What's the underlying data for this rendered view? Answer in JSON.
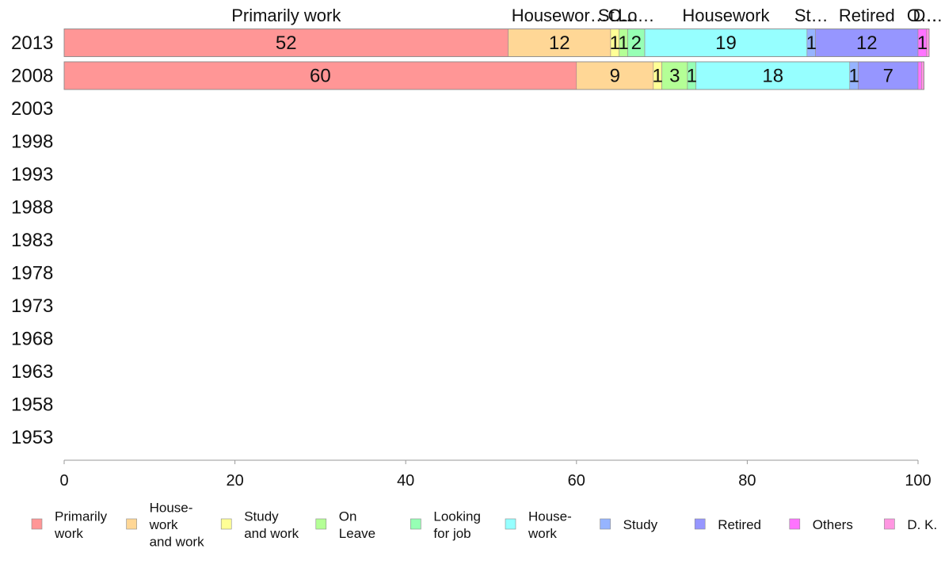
{
  "chart_data": {
    "type": "bar",
    "orientation": "horizontal-stacked",
    "categories": [
      "2013",
      "2008",
      "2003",
      "1998",
      "1993",
      "1988",
      "1983",
      "1978",
      "1973",
      "1968",
      "1963",
      "1958",
      "1953"
    ],
    "series": [
      {
        "name": "Primarily work",
        "legend": [
          "Primarily",
          "work"
        ],
        "top": "Primarily work",
        "color": "#ff9696",
        "values": [
          52,
          60,
          null,
          null,
          null,
          null,
          null,
          null,
          null,
          null,
          null,
          null,
          null
        ]
      },
      {
        "name": "House-work and work",
        "legend": [
          "House-",
          "work",
          "and work"
        ],
        "top": "Housewor…",
        "color": "#ffd796",
        "values": [
          12,
          9,
          null,
          null,
          null,
          null,
          null,
          null,
          null,
          null,
          null,
          null,
          null
        ]
      },
      {
        "name": "Study and work",
        "legend": [
          "Study",
          "and work"
        ],
        "top": "St…",
        "color": "#ffff96",
        "values": [
          1,
          1,
          null,
          null,
          null,
          null,
          null,
          null,
          null,
          null,
          null,
          null,
          null
        ]
      },
      {
        "name": "On Leave",
        "legend": [
          "On",
          "Leave"
        ],
        "top": "O…",
        "color": "#b4ff96",
        "values": [
          1,
          3,
          null,
          null,
          null,
          null,
          null,
          null,
          null,
          null,
          null,
          null,
          null
        ]
      },
      {
        "name": "Looking for job",
        "legend": [
          "Looking",
          "for job"
        ],
        "top": "Lo…",
        "color": "#96ffb4",
        "values": [
          2,
          1,
          null,
          null,
          null,
          null,
          null,
          null,
          null,
          null,
          null,
          null,
          null
        ]
      },
      {
        "name": "House-work",
        "legend": [
          "House-",
          "work"
        ],
        "top": "Housework",
        "color": "#96ffff",
        "values": [
          19,
          18,
          null,
          null,
          null,
          null,
          null,
          null,
          null,
          null,
          null,
          null,
          null
        ]
      },
      {
        "name": "Study",
        "legend": [
          "Study"
        ],
        "top": "St…",
        "color": "#96b4ff",
        "values": [
          1,
          1,
          null,
          null,
          null,
          null,
          null,
          null,
          null,
          null,
          null,
          null,
          null
        ]
      },
      {
        "name": "Retired",
        "legend": [
          "Retired"
        ],
        "top": "Retired",
        "color": "#9696ff",
        "values": [
          12,
          7,
          null,
          null,
          null,
          null,
          null,
          null,
          null,
          null,
          null,
          null,
          null
        ]
      },
      {
        "name": "Others",
        "legend": [
          "Others"
        ],
        "top": "O…",
        "color": "#ff73ff",
        "values": [
          1,
          0.4,
          null,
          null,
          null,
          null,
          null,
          null,
          null,
          null,
          null,
          null,
          null
        ]
      },
      {
        "name": "D. K.",
        "legend": [
          "D. K."
        ],
        "top": "D…",
        "color": "#ff96e1",
        "values": [
          0.3,
          0.3,
          null,
          null,
          null,
          null,
          null,
          null,
          null,
          null,
          null,
          null,
          null
        ]
      }
    ],
    "xlim": [
      0,
      100
    ],
    "xticks": [
      0,
      20,
      40,
      60,
      80,
      100
    ],
    "title": "",
    "xlabel": "",
    "ylabel": "",
    "grid": false,
    "legend_position": "bottom"
  }
}
